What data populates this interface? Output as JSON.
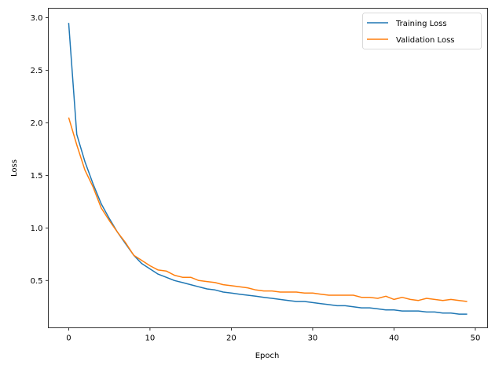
{
  "chart_data": {
    "type": "line",
    "title": "",
    "xlabel": "Epoch",
    "ylabel": "Loss",
    "xlim": [
      -2.5,
      51.5
    ],
    "ylim": [
      0.05,
      3.09
    ],
    "xticks": [
      0,
      10,
      20,
      30,
      40,
      50
    ],
    "yticks": [
      0.5,
      1.0,
      1.5,
      2.0,
      2.5,
      3.0
    ],
    "ytick_labels": [
      "0.5",
      "1.0",
      "1.5",
      "2.0",
      "2.5",
      "3.0"
    ],
    "grid": false,
    "legend_position": "upper right",
    "x": [
      0,
      1,
      2,
      3,
      4,
      5,
      6,
      7,
      8,
      9,
      10,
      11,
      12,
      13,
      14,
      15,
      16,
      17,
      18,
      19,
      20,
      21,
      22,
      23,
      24,
      25,
      26,
      27,
      28,
      29,
      30,
      31,
      32,
      33,
      34,
      35,
      36,
      37,
      38,
      39,
      40,
      41,
      42,
      43,
      44,
      45,
      46,
      47,
      48,
      49
    ],
    "series": [
      {
        "name": "Training Loss",
        "color": "#1f77b4",
        "values": [
          2.95,
          1.89,
          1.63,
          1.42,
          1.23,
          1.09,
          0.96,
          0.85,
          0.74,
          0.66,
          0.61,
          0.56,
          0.53,
          0.5,
          0.48,
          0.46,
          0.44,
          0.42,
          0.41,
          0.39,
          0.38,
          0.37,
          0.36,
          0.35,
          0.34,
          0.33,
          0.32,
          0.31,
          0.3,
          0.3,
          0.29,
          0.28,
          0.27,
          0.26,
          0.26,
          0.25,
          0.24,
          0.24,
          0.23,
          0.22,
          0.22,
          0.21,
          0.21,
          0.21,
          0.2,
          0.2,
          0.19,
          0.19,
          0.18,
          0.18
        ]
      },
      {
        "name": "Validation Loss",
        "color": "#ff7f0e",
        "values": [
          2.05,
          1.79,
          1.55,
          1.39,
          1.19,
          1.07,
          0.96,
          0.86,
          0.74,
          0.69,
          0.64,
          0.6,
          0.59,
          0.55,
          0.53,
          0.53,
          0.5,
          0.49,
          0.48,
          0.46,
          0.45,
          0.44,
          0.43,
          0.41,
          0.4,
          0.4,
          0.39,
          0.39,
          0.39,
          0.38,
          0.38,
          0.37,
          0.36,
          0.36,
          0.36,
          0.36,
          0.34,
          0.34,
          0.33,
          0.35,
          0.32,
          0.34,
          0.32,
          0.31,
          0.33,
          0.32,
          0.31,
          0.32,
          0.31,
          0.3
        ]
      }
    ]
  },
  "legend": {
    "items": [
      {
        "label": "Training Loss",
        "color": "#1f77b4"
      },
      {
        "label": "Validation Loss",
        "color": "#ff7f0e"
      }
    ]
  },
  "axes": {
    "xlabel": "Epoch",
    "ylabel": "Loss"
  }
}
